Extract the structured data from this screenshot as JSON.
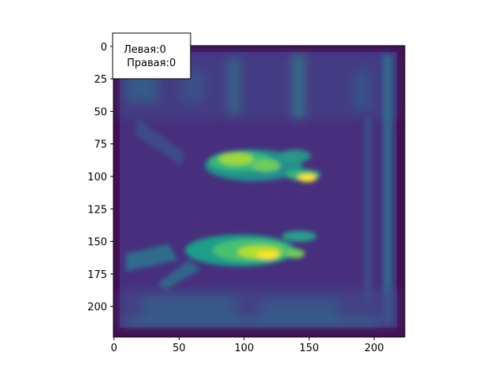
{
  "chart_data": {
    "type": "heatmap",
    "colormap": "viridis",
    "image_size": [
      224,
      224
    ],
    "xlim": [
      0,
      224
    ],
    "ylim": [
      224,
      0
    ],
    "x_ticks": [
      0,
      50,
      100,
      150,
      200
    ],
    "y_ticks": [
      0,
      25,
      50,
      75,
      100,
      125,
      150,
      175,
      200
    ],
    "annotation": {
      "line1": "Левая:0",
      "line2": " Правая:0"
    },
    "features": {
      "background_level": 0.2,
      "frame_outer_level": 0.05,
      "upper_paw": {
        "x_range": [
          70,
          160
        ],
        "y_center": 93,
        "peak_x": 152,
        "peak_y": 102
      },
      "lower_paw": {
        "x_range": [
          60,
          150
        ],
        "y_center": 158,
        "peak_x": 115,
        "peak_y": 160
      }
    }
  }
}
